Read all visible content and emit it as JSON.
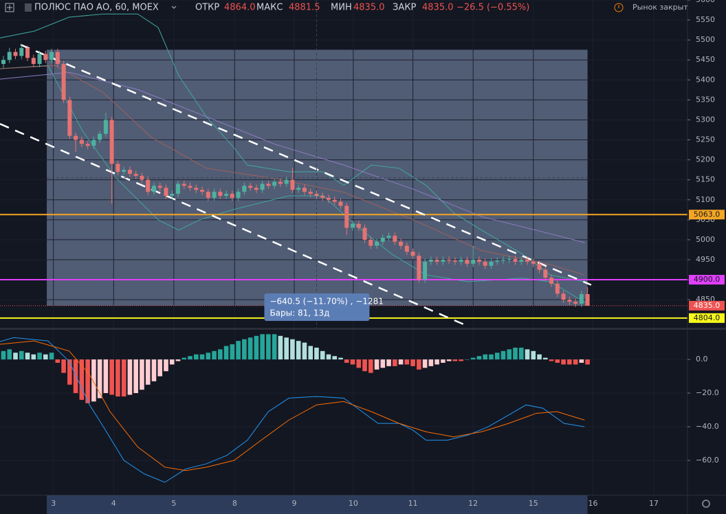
{
  "header": {
    "symbol": "ПОЛЮС ПАО АО, 60, MOEX",
    "open_label": "ОТКР",
    "open": "4864.0",
    "high_label": "МАКС",
    "high": "4881.5",
    "low_label": "МИН",
    "low": "4835.0",
    "close_label": "ЗАКР",
    "close": "4835.0",
    "change": "−26.5 (−0.55%)",
    "status": "Рынок закрыт"
  },
  "chart_data": [
    {
      "type": "candlestick",
      "up_color": "#4fb0a0",
      "down_color": "#e57373",
      "xlim": [
        -0.57,
        113.6
      ],
      "ylim": [
        4778,
        5600
      ],
      "xticks": [
        {
          "value": 8.3,
          "label": "3"
        },
        {
          "value": 18.3,
          "label": "4"
        },
        {
          "value": 28.3,
          "label": "5"
        },
        {
          "value": 38.4,
          "label": "8"
        },
        {
          "value": 48.3,
          "label": "9"
        },
        {
          "value": 58.1,
          "label": "10"
        },
        {
          "value": 68.0,
          "label": "11"
        },
        {
          "value": 78.0,
          "label": "12"
        },
        {
          "value": 88.0,
          "label": "15"
        },
        {
          "value": 97.9,
          "label": "16"
        },
        {
          "value": 108.0,
          "label": "17"
        }
      ],
      "yticks": [
        4850,
        4900,
        4950,
        5000,
        5050,
        5100,
        5150,
        5200,
        5250,
        5300,
        5350,
        5400,
        5450,
        5500,
        5550,
        5600
      ],
      "grid": true,
      "open": [
        5440,
        5450,
        5470,
        5460,
        5480,
        5455,
        5440,
        5465,
        5450,
        5470,
        5440,
        5350,
        5260,
        5250,
        5240,
        5235,
        5250,
        5265,
        5300,
        5190,
        5170,
        5175,
        5165,
        5160,
        5150,
        5120,
        5135,
        5130,
        5110,
        5115,
        5140,
        5135,
        5130,
        5125,
        5120,
        5105,
        5120,
        5110,
        5115,
        5105,
        5120,
        5135,
        5130,
        5125,
        5140,
        5135,
        5145,
        5140,
        5150,
        5125,
        5130,
        5120,
        5115,
        5110,
        5105,
        5100,
        5095,
        5085,
        5030,
        5040,
        5030,
        5000,
        4985,
        4995,
        5005,
        5010,
        4995,
        4985,
        4970,
        4960,
        4900,
        4945,
        4950,
        4945,
        4950,
        4948,
        4945,
        4950,
        4940,
        4950,
        4945,
        4935,
        4945,
        4948,
        4950,
        4952,
        4945,
        4950,
        4945,
        4940,
        4925,
        4905,
        4890,
        4865,
        4850,
        4845,
        4840,
        4864
      ],
      "high": [
        5460,
        5480,
        5478,
        5488,
        5486,
        5463,
        5473,
        5473,
        5478,
        5478,
        5448,
        5358,
        5268,
        5258,
        5248,
        5258,
        5273,
        5318,
        5308,
        5198,
        5183,
        5183,
        5173,
        5168,
        5158,
        5143,
        5143,
        5138,
        5123,
        5148,
        5148,
        5143,
        5138,
        5133,
        5128,
        5128,
        5128,
        5123,
        5123,
        5128,
        5143,
        5143,
        5138,
        5148,
        5148,
        5153,
        5153,
        5158,
        5180,
        5138,
        5138,
        5128,
        5123,
        5118,
        5113,
        5108,
        5103,
        5093,
        5048,
        5048,
        5038,
        5008,
        5003,
        5013,
        5018,
        5018,
        5003,
        4993,
        4978,
        4968,
        4953,
        4958,
        4958,
        4958,
        4958,
        4956,
        4958,
        4958,
        4985,
        4958,
        4953,
        4953,
        4956,
        4958,
        4960,
        4960,
        4958,
        4958,
        4953,
        4948,
        4933,
        4913,
        4898,
        4873,
        4858,
        4853,
        4872,
        4881.5
      ],
      "low": [
        5430,
        5442,
        5452,
        5452,
        5447,
        5432,
        5432,
        5442,
        5442,
        5432,
        5342,
        5252,
        5220,
        5232,
        5227,
        5227,
        5242,
        5257,
        5090,
        5162,
        5162,
        5157,
        5152,
        5142,
        5112,
        5112,
        5122,
        5102,
        5102,
        5107,
        5127,
        5122,
        5117,
        5112,
        5097,
        5097,
        5102,
        5102,
        5097,
        5097,
        5112,
        5122,
        5117,
        5117,
        5127,
        5127,
        5132,
        5132,
        5117,
        5117,
        5112,
        5107,
        5102,
        5097,
        5092,
        5087,
        5077,
        5012,
        5022,
        5022,
        4992,
        4977,
        4977,
        4987,
        4997,
        4987,
        4977,
        4962,
        4952,
        4892,
        4892,
        4937,
        4937,
        4937,
        4940,
        4937,
        4937,
        4932,
        4932,
        4937,
        4927,
        4927,
        4937,
        4940,
        4942,
        4937,
        4937,
        4937,
        4932,
        4917,
        4897,
        4882,
        4857,
        4842,
        4837,
        4832,
        4832,
        4835
      ],
      "close": [
        5450,
        5470,
        5460,
        5480,
        5455,
        5440,
        5465,
        5450,
        5470,
        5440,
        5350,
        5260,
        5250,
        5240,
        5235,
        5250,
        5265,
        5300,
        5190,
        5170,
        5175,
        5165,
        5160,
        5150,
        5120,
        5135,
        5130,
        5110,
        5115,
        5140,
        5135,
        5130,
        5125,
        5120,
        5105,
        5120,
        5110,
        5115,
        5105,
        5120,
        5135,
        5130,
        5125,
        5140,
        5135,
        5145,
        5140,
        5150,
        5125,
        5130,
        5120,
        5115,
        5110,
        5105,
        5100,
        5095,
        5085,
        5030,
        5040,
        5030,
        5000,
        4985,
        4995,
        5005,
        5010,
        4995,
        4985,
        4970,
        4960,
        4900,
        4945,
        4950,
        4945,
        4950,
        4948,
        4945,
        4950,
        4940,
        4950,
        4945,
        4935,
        4945,
        4948,
        4950,
        4952,
        4945,
        4950,
        4945,
        4940,
        4925,
        4905,
        4890,
        4865,
        4850,
        4845,
        4840,
        4864,
        4835
      ],
      "indicators": [
        {
          "color": "#3fa8a0",
          "x": [
            -0.6,
            5.1,
            10.9,
            16.6,
            22.3,
            25.7,
            29.1,
            33.7,
            38.3,
            40.5,
            47.4,
            53.1,
            56.5,
            61.1,
            65.7,
            70.2,
            74.8,
            79.4,
            86.2,
            90.8,
            96.5
          ],
          "values": [
            5505,
            5522,
            5557,
            5565,
            5565,
            5531,
            5411,
            5308,
            5230,
            5187,
            5170,
            5170,
            5136,
            5187,
            5179,
            5136,
            5067,
            5024,
            4964,
            4912,
            4895
          ]
        },
        {
          "color": "#3fa8a0",
          "x": [
            -0.6,
            7.4,
            13.1,
            18.8,
            25.7,
            29.1,
            32.6,
            38.3,
            47.4,
            53.1,
            58.8,
            64.5,
            70.2,
            77.1,
            86.2,
            90.8,
            96.5
          ],
          "values": [
            5428,
            5436,
            5273,
            5153,
            5050,
            5024,
            5050,
            5076,
            5110,
            5110,
            5033,
            4964,
            4912,
            4895,
            4904,
            4895,
            4844
          ]
        },
        {
          "color": "#8e7cc3",
          "x": [
            -0.6,
            10.9,
            22.3,
            33.7,
            45.1,
            56.5,
            68.0,
            79.4,
            90.8,
            96.5
          ],
          "values": [
            5402,
            5419,
            5376,
            5308,
            5239,
            5187,
            5127,
            5058,
            5015,
            4993
          ]
        },
        {
          "color": "#a0605c",
          "x": [
            -0.6,
            8.6,
            16.6,
            24.6,
            33.7,
            45.1,
            56.5,
            68.0,
            79.4,
            90.8,
            96.5
          ],
          "values": [
            5428,
            5436,
            5368,
            5256,
            5179,
            5153,
            5119,
            5050,
            4973,
            4938,
            4912
          ]
        }
      ],
      "levels": [
        {
          "value": 5063,
          "label": "5063.0",
          "color": "#f5a623"
        },
        {
          "value": 4900,
          "label": "4900.0",
          "color": "#e040fb"
        },
        {
          "value": 4804,
          "label": "4804.0",
          "color": "#f7f71a"
        }
      ],
      "last_price": {
        "value": 4835,
        "label": "4835.0",
        "color": "#ef5350"
      },
      "trend_lines": [
        {
          "from": [
            2.86,
            5488
          ],
          "to": [
            97.6,
            4887
          ]
        },
        {
          "from": [
            -0.57,
            5290
          ],
          "to": [
            77.1,
            4784
          ]
        }
      ],
      "crosshair": {
        "x": 52,
        "price": 5155
      },
      "measure": {
        "from": {
          "x": 7.2,
          "price": 5475.5
        },
        "to": {
          "x": 97,
          "price": 4835
        },
        "color": "#8fa3c8",
        "label_1": "−640.5 (−11.70%) , −1281",
        "label_2": "Бары: 81, 13д"
      }
    },
    {
      "type": "macd",
      "ylim": [
        -80.4,
        18.4
      ],
      "yticks": [
        {
          "value": 0,
          "label": "0.0"
        },
        {
          "value": -20,
          "label": "−20.0"
        },
        {
          "value": -40,
          "label": "−40.0"
        },
        {
          "value": -60,
          "label": "−60.0"
        }
      ],
      "histogram": [
        5,
        6,
        4,
        5,
        4,
        3,
        4,
        3,
        4,
        -2,
        -8,
        -15,
        -20,
        -24,
        -26,
        -25,
        -23,
        -20,
        -21,
        -22,
        -22,
        -21,
        -20,
        -18,
        -15,
        -13,
        -10,
        -7,
        -3,
        -1,
        1,
        2,
        3,
        3,
        4,
        5,
        6,
        8,
        9,
        11,
        12,
        13,
        14,
        15,
        15,
        15,
        14,
        13,
        12,
        11,
        10,
        8,
        7,
        5,
        3,
        2,
        1,
        -2,
        -3,
        -5,
        -7,
        -8,
        -6,
        -5,
        -4,
        -4,
        -3,
        -3,
        -4,
        -6,
        -5,
        -4,
        -3,
        -2,
        -1,
        -1,
        -1,
        0,
        1,
        2,
        3,
        3,
        4,
        5,
        6,
        7,
        7,
        6,
        5,
        3,
        1,
        -1,
        -2,
        -3,
        -3,
        -3,
        -2,
        -3
      ],
      "histogram_colors": [
        "#26a69a",
        "#b2dfdb",
        "#ef5350",
        "#ffcdd2"
      ],
      "lines": [
        {
          "color": "#2196f3",
          "x": [
            -0.57,
            1.7,
            7.4,
            10.9,
            14.3,
            16.6,
            20,
            23.4,
            26.8,
            30.3,
            33.7,
            37.1,
            40.5,
            44,
            47.4,
            52,
            56.5,
            58.8,
            62.2,
            65.7,
            68,
            70.2,
            73.7,
            77.1,
            80.5,
            83.9,
            86.8,
            89.6,
            93.1,
            96.5
          ],
          "values": [
            10.6,
            13,
            11,
            -1,
            -27,
            -40,
            -60,
            -68,
            -73,
            -65,
            -62,
            -57,
            -48,
            -31,
            -23,
            -22,
            -23,
            -29,
            -38,
            -38,
            -42,
            -48,
            -48,
            -45,
            -40,
            -33,
            -27,
            -29,
            -38,
            -40
          ]
        },
        {
          "color": "#ff6d00",
          "x": [
            -0.57,
            5.1,
            10.9,
            14.3,
            17.7,
            22.3,
            26.8,
            30.3,
            33.7,
            38.3,
            42.8,
            47.4,
            52,
            56.5,
            61.1,
            65.7,
            70.2,
            74.8,
            79.4,
            83.9,
            88.5,
            91.9,
            96.5
          ],
          "values": [
            9,
            11,
            5,
            -9,
            -31,
            -52,
            -64,
            -66,
            -64,
            -60,
            -48,
            -36,
            -27,
            -25,
            -31,
            -38,
            -43,
            -46,
            -43,
            -38,
            -32,
            -31,
            -36
          ]
        }
      ]
    }
  ]
}
